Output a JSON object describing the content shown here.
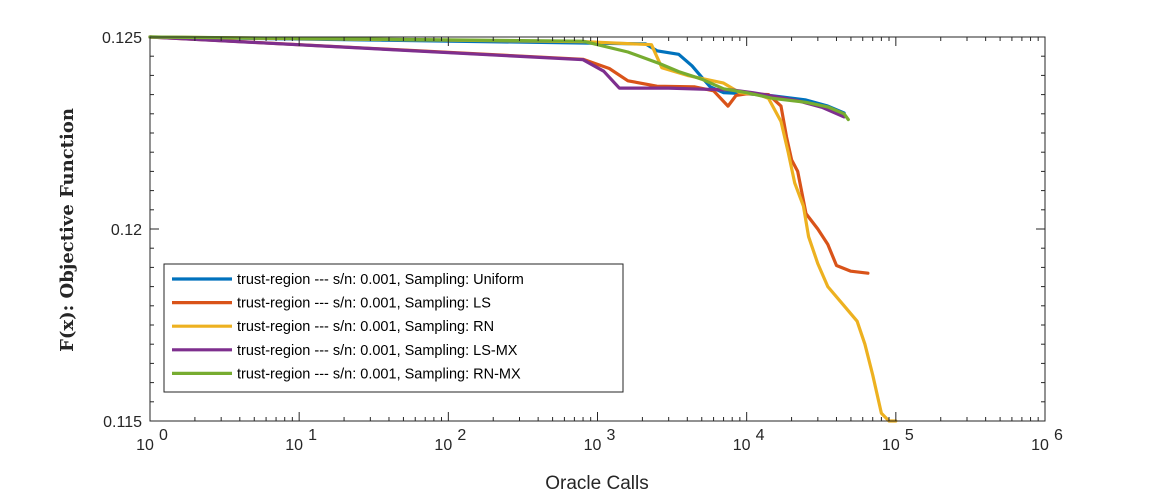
{
  "chart_data": {
    "type": "line",
    "title": "",
    "xlabel": "Oracle Calls",
    "ylabel": "F(x): Objective Function",
    "xscale": "log",
    "xlim": [
      1,
      1000000
    ],
    "ylim": [
      0.115,
      0.125
    ],
    "x_ticks": [
      1,
      10,
      100,
      1000,
      10000,
      100000,
      1000000
    ],
    "x_tick_labels": [
      {
        "base": "10",
        "exp": "0"
      },
      {
        "base": "10",
        "exp": "1"
      },
      {
        "base": "10",
        "exp": "2"
      },
      {
        "base": "10",
        "exp": "3"
      },
      {
        "base": "10",
        "exp": "4"
      },
      {
        "base": "10",
        "exp": "5"
      },
      {
        "base": "10",
        "exp": "6"
      }
    ],
    "y_ticks": [
      0.115,
      0.12,
      0.125
    ],
    "y_tick_labels": [
      "0.115",
      "0.12",
      "0.125"
    ],
    "grid": false,
    "legend_position": "lower-left",
    "series": [
      {
        "name": "trust-region --- s/n: 0.001, Sampling: Uniform",
        "color": "#0072BD",
        "points": [
          [
            1,
            0.125
          ],
          [
            900,
            0.12484
          ],
          [
            2100,
            0.12482
          ],
          [
            2500,
            0.12464
          ],
          [
            3500,
            0.12455
          ],
          [
            4300,
            0.12425
          ],
          [
            5000,
            0.12395
          ],
          [
            5700,
            0.1237
          ],
          [
            7000,
            0.12355
          ],
          [
            10000,
            0.12352
          ],
          [
            15000,
            0.12347
          ],
          [
            25000,
            0.12336
          ],
          [
            35000,
            0.1232
          ],
          [
            45000,
            0.12302
          ]
        ]
      },
      {
        "name": "trust-region --- s/n: 0.001, Sampling: LS",
        "color": "#D95319",
        "points": [
          [
            1,
            0.125
          ],
          [
            800,
            0.12442
          ],
          [
            1200,
            0.12418
          ],
          [
            1600,
            0.12386
          ],
          [
            2500,
            0.12372
          ],
          [
            4500,
            0.1237
          ],
          [
            6000,
            0.1236
          ],
          [
            7500,
            0.1232
          ],
          [
            8500,
            0.12348
          ],
          [
            10000,
            0.12352
          ],
          [
            14000,
            0.1235
          ],
          [
            17000,
            0.1232
          ],
          [
            18500,
            0.1224
          ],
          [
            20000,
            0.1218
          ],
          [
            22000,
            0.1215
          ],
          [
            25000,
            0.1204
          ],
          [
            30000,
            0.12
          ],
          [
            35000,
            0.1196
          ],
          [
            40000,
            0.11905
          ],
          [
            50000,
            0.1189
          ],
          [
            65000,
            0.11885
          ]
        ]
      },
      {
        "name": "trust-region --- s/n: 0.001, Sampling: RN",
        "color": "#EDB120",
        "points": [
          [
            1,
            0.125
          ],
          [
            800,
            0.12488
          ],
          [
            2300,
            0.1248
          ],
          [
            2700,
            0.1242
          ],
          [
            4000,
            0.124
          ],
          [
            7000,
            0.1238
          ],
          [
            9000,
            0.12355
          ],
          [
            12000,
            0.1235
          ],
          [
            14000,
            0.1234
          ],
          [
            17000,
            0.1228
          ],
          [
            19000,
            0.122
          ],
          [
            21000,
            0.1212
          ],
          [
            24000,
            0.1206
          ],
          [
            26000,
            0.1198
          ],
          [
            30000,
            0.1191
          ],
          [
            35000,
            0.1185
          ],
          [
            45000,
            0.118
          ],
          [
            55000,
            0.1176
          ],
          [
            62000,
            0.117
          ],
          [
            70000,
            0.1162
          ],
          [
            80000,
            0.1152
          ],
          [
            90000,
            0.115
          ],
          [
            100000,
            0.115
          ]
        ]
      },
      {
        "name": "trust-region --- s/n: 0.001, Sampling: LS-MX",
        "color": "#7E2F8E",
        "points": [
          [
            1,
            0.125
          ],
          [
            800,
            0.12441
          ],
          [
            1100,
            0.12411
          ],
          [
            1400,
            0.12367
          ],
          [
            3000,
            0.12367
          ],
          [
            5000,
            0.12364
          ],
          [
            8000,
            0.12362
          ],
          [
            11000,
            0.12355
          ],
          [
            15000,
            0.12346
          ],
          [
            22000,
            0.12334
          ],
          [
            32000,
            0.12317
          ],
          [
            45000,
            0.12292
          ]
        ]
      },
      {
        "name": "trust-region --- s/n: 0.001, Sampling: RN-MX",
        "color": "#77AC30",
        "points": [
          [
            1,
            0.125
          ],
          [
            800,
            0.12489
          ],
          [
            1600,
            0.12461
          ],
          [
            2600,
            0.12431
          ],
          [
            3500,
            0.1241
          ],
          [
            5000,
            0.1239
          ],
          [
            7000,
            0.12365
          ],
          [
            10000,
            0.12355
          ],
          [
            15000,
            0.1234
          ],
          [
            25000,
            0.1233
          ],
          [
            35000,
            0.12318
          ],
          [
            45000,
            0.123
          ],
          [
            48000,
            0.12285
          ]
        ]
      }
    ]
  }
}
